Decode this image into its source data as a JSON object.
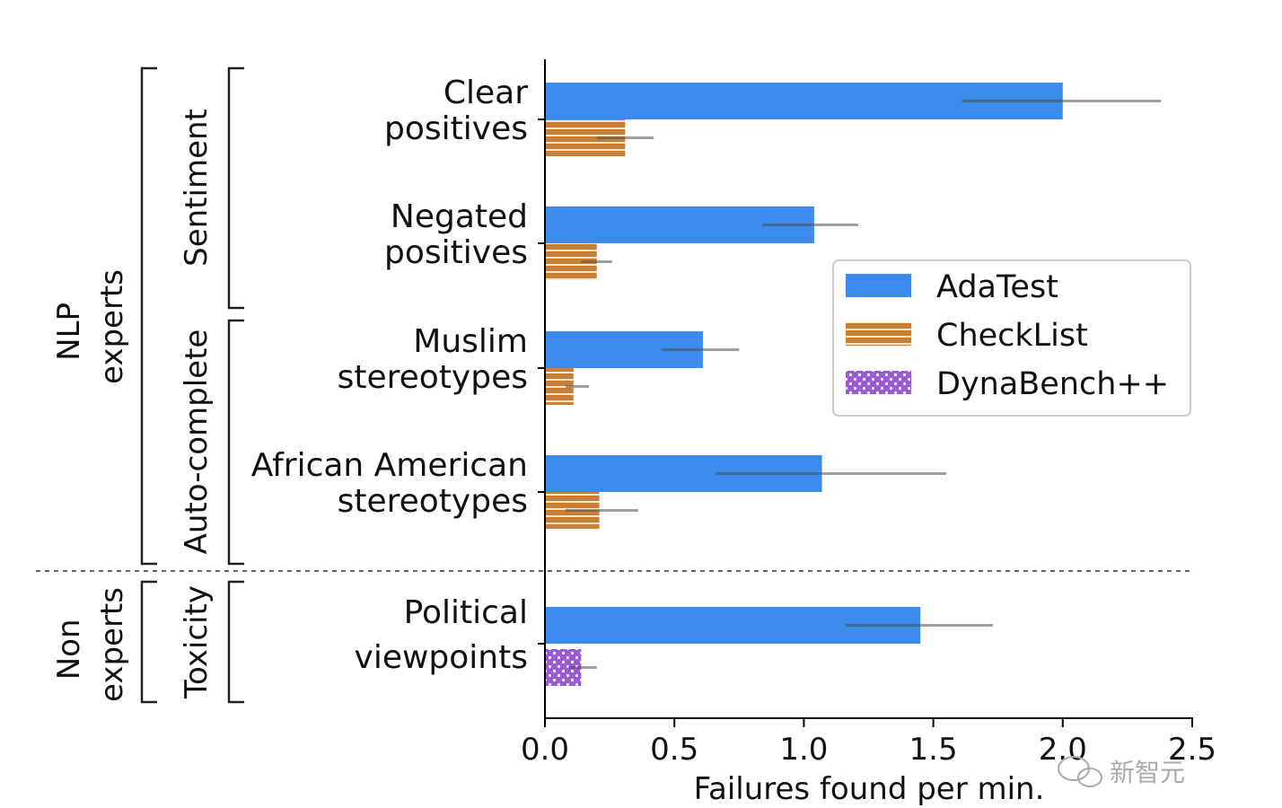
{
  "chart_data": {
    "type": "bar",
    "orientation": "horizontal",
    "xlabel": "Failures found per min.",
    "xlim": [
      0.0,
      2.5
    ],
    "xticks": [
      "0.0",
      "0.5",
      "1.0",
      "1.5",
      "2.0",
      "2.5"
    ],
    "categories": [
      [
        "Clear",
        "positives"
      ],
      [
        "Negated",
        "positives"
      ],
      [
        "Muslim",
        "stereotypes"
      ],
      [
        "African American",
        "stereotypes"
      ],
      [
        "Political",
        "viewpoints"
      ]
    ],
    "series": [
      {
        "name": "AdaTest",
        "color": "#3b8ced",
        "pattern": "solid",
        "values": [
          2.0,
          1.04,
          0.61,
          1.07,
          1.45
        ],
        "error_low": [
          1.61,
          0.84,
          0.45,
          0.66,
          1.16
        ],
        "error_high": [
          2.38,
          1.21,
          0.75,
          1.55,
          1.73
        ]
      },
      {
        "name": "CheckList",
        "color": "#c87f37",
        "pattern": "horizontal-stripes",
        "values": [
          0.31,
          0.2,
          0.11,
          0.21,
          null
        ],
        "error_low": [
          0.2,
          0.14,
          0.08,
          0.08,
          null
        ],
        "error_high": [
          0.42,
          0.26,
          0.17,
          0.36,
          null
        ]
      },
      {
        "name": "DynaBench++",
        "color": "#9b59d6",
        "pattern": "dots",
        "values": [
          null,
          null,
          null,
          null,
          0.14
        ],
        "error_low": [
          null,
          null,
          null,
          null,
          0.09
        ],
        "error_high": [
          null,
          null,
          null,
          null,
          0.2
        ]
      }
    ],
    "tasks": [
      {
        "label": "Sentiment",
        "categories": [
          0,
          1
        ]
      },
      {
        "label": "Auto-complete",
        "categories": [
          2,
          3
        ]
      },
      {
        "label": "Toxicity",
        "categories": [
          4
        ]
      }
    ],
    "user_groups": [
      {
        "label": [
          "NLP",
          "experts"
        ],
        "categories": [
          0,
          1,
          2,
          3
        ]
      },
      {
        "label": [
          "Non",
          "experts"
        ],
        "categories": [
          4
        ]
      }
    ],
    "legend_position": "right",
    "grid": false
  },
  "watermark": {
    "text": "新智元",
    "icon": "wechat-icon"
  }
}
